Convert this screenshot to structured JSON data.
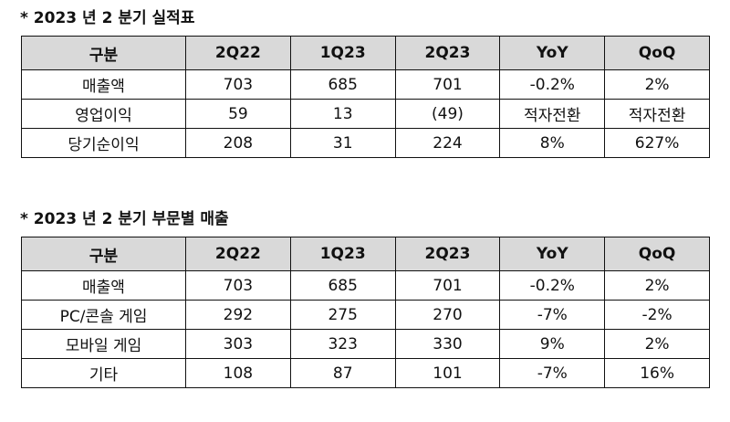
{
  "table1": {
    "title": "* 2023 년 2 분기 실적표",
    "headers": [
      "구분",
      "2Q22",
      "1Q23",
      "2Q23",
      "YoY",
      "QoQ"
    ],
    "rows": [
      [
        "매출액",
        "703",
        "685",
        "701",
        "-0.2%",
        "2%"
      ],
      [
        "영업이익",
        "59",
        "13",
        "(49)",
        "적자전환",
        "적자전환"
      ],
      [
        "당기순이익",
        "208",
        "31",
        "224",
        "8%",
        "627%"
      ]
    ]
  },
  "table2": {
    "title": "* 2023 년 2 분기 부문별 매출",
    "headers": [
      "구분",
      "2Q22",
      "1Q23",
      "2Q23",
      "YoY",
      "QoQ"
    ],
    "rows": [
      [
        "매출액",
        "703",
        "685",
        "701",
        "-0.2%",
        "2%"
      ],
      [
        "PC/콘솔 게임",
        "292",
        "275",
        "270",
        "-7%",
        "-2%"
      ],
      [
        "모바일 게임",
        "303",
        "323",
        "330",
        "9%",
        "2%"
      ],
      [
        "기타",
        "108",
        "87",
        "101",
        "-7%",
        "16%"
      ]
    ]
  }
}
